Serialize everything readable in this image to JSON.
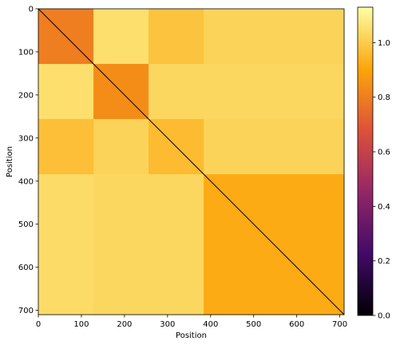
{
  "chart_data": {
    "type": "heatmap",
    "title": "",
    "xlabel": "Position",
    "ylabel": "Position",
    "xlim": [
      0,
      710
    ],
    "ylim": [
      710,
      0
    ],
    "x_ticks": [
      0,
      100,
      200,
      300,
      400,
      500,
      600,
      700
    ],
    "y_ticks": [
      0,
      100,
      200,
      300,
      400,
      500,
      600,
      700
    ],
    "colormap": "inferno",
    "colorbar": {
      "vmin": 0.0,
      "vmax": 1.13,
      "ticks": [
        0.0,
        0.2,
        0.4,
        0.6,
        0.8,
        1.0
      ],
      "tick_labels": [
        "0.0",
        "0.2",
        "0.4",
        "0.6",
        "0.8",
        "1.0"
      ],
      "stops": [
        "#000004",
        "#420a68",
        "#932667",
        "#dd513a",
        "#fca50a",
        "#fcffa4"
      ]
    },
    "block_boundaries": [
      0,
      128,
      256,
      384,
      710
    ],
    "block_values": [
      [
        0.8,
        1.05,
        0.98,
        1.02
      ],
      [
        1.05,
        0.84,
        1.03,
        1.03
      ],
      [
        0.97,
        1.02,
        0.96,
        1.02
      ],
      [
        1.04,
        1.03,
        1.03,
        0.92
      ]
    ],
    "diagonal_value": 0.0,
    "tick_format": {
      "x": "{v}",
      "y": "{v}"
    }
  }
}
